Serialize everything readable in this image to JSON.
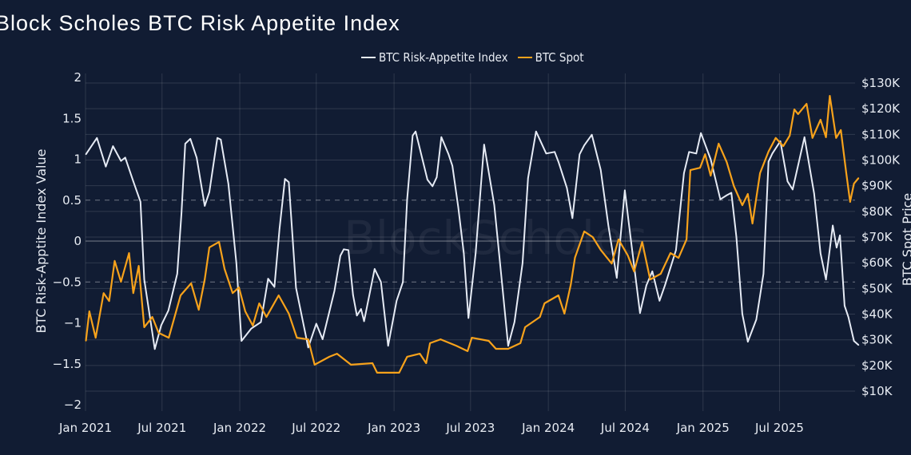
{
  "chart_data": {
    "type": "line",
    "title": "Block Scholes BTC Risk Appetite Index",
    "watermark": "BlockScholes",
    "legend_position": "top-center",
    "grid": true,
    "x_ticks": [
      "Jan 2021",
      "Jul 2021",
      "Jan 2022",
      "Jul 2022",
      "Jan 2023",
      "Jul 2023",
      "Jan 2024",
      "Jul 2024",
      "Jan 2025",
      "Jul 2025"
    ],
    "x_tick_dates": [
      "2021-01-01",
      "2021-07-01",
      "2022-01-01",
      "2022-07-01",
      "2023-01-01",
      "2023-07-01",
      "2024-01-01",
      "2024-07-01",
      "2025-01-01",
      "2025-07-01"
    ],
    "y_left": {
      "label": "BTC Risk-Apptite Index Value",
      "range": [
        -2,
        2
      ],
      "ticks": [
        "2",
        "1.5",
        "1",
        "0.5",
        "0",
        "−0.5",
        "−1",
        "−1.5",
        "−2"
      ],
      "tick_values": [
        2,
        1.5,
        1,
        0.5,
        0,
        -0.5,
        -1,
        -1.5,
        -2
      ],
      "dashed_reference_lines": [
        0.5,
        -0.5
      ]
    },
    "y_right": {
      "label": "BTC Spot Price",
      "range_k_usd": [
        10,
        130
      ],
      "ticks": [
        "$130K",
        "$120K",
        "$110K",
        "$100K",
        "$90K",
        "$80K",
        "$70K",
        "$60K",
        "$50K",
        "$40K",
        "$30K",
        "$20K",
        "$10K"
      ],
      "tick_values": [
        130,
        120,
        110,
        100,
        90,
        80,
        70,
        60,
        50,
        40,
        30,
        20,
        10
      ]
    },
    "series": [
      {
        "name": "BTC Risk-Appetite Index",
        "axis": "left",
        "color": "#e6ebf5",
        "points": [
          [
            "2021-01-02",
            1.06
          ],
          [
            "2021-01-28",
            1.26
          ],
          [
            "2021-02-18",
            0.91
          ],
          [
            "2021-03-07",
            1.16
          ],
          [
            "2021-03-26",
            0.98
          ],
          [
            "2021-04-05",
            1.02
          ],
          [
            "2021-04-24",
            0.73
          ],
          [
            "2021-05-11",
            0.48
          ],
          [
            "2021-05-20",
            -0.47
          ],
          [
            "2021-06-14",
            -1.32
          ],
          [
            "2021-06-29",
            -1.03
          ],
          [
            "2021-07-16",
            -0.85
          ],
          [
            "2021-08-06",
            -0.4
          ],
          [
            "2021-08-16",
            0.34
          ],
          [
            "2021-08-25",
            1.19
          ],
          [
            "2021-09-06",
            1.25
          ],
          [
            "2021-09-21",
            1.02
          ],
          [
            "2021-10-10",
            0.43
          ],
          [
            "2021-10-21",
            0.6
          ],
          [
            "2021-11-09",
            1.26
          ],
          [
            "2021-11-17",
            1.24
          ],
          [
            "2021-12-05",
            0.7
          ],
          [
            "2021-12-24",
            -0.27
          ],
          [
            "2022-01-05",
            -1.22
          ],
          [
            "2022-01-28",
            -1.07
          ],
          [
            "2022-02-20",
            -0.99
          ],
          [
            "2022-03-09",
            -0.46
          ],
          [
            "2022-03-24",
            -0.56
          ],
          [
            "2022-04-05",
            0.15
          ],
          [
            "2022-04-18",
            0.76
          ],
          [
            "2022-04-27",
            0.72
          ],
          [
            "2022-05-14",
            -0.57
          ],
          [
            "2022-06-12",
            -1.3
          ],
          [
            "2022-07-01",
            -1.01
          ],
          [
            "2022-07-16",
            -1.2
          ],
          [
            "2022-08-13",
            -0.61
          ],
          [
            "2022-08-27",
            -0.18
          ],
          [
            "2022-09-04",
            -0.1
          ],
          [
            "2022-09-15",
            -0.11
          ],
          [
            "2022-09-26",
            -0.66
          ],
          [
            "2022-10-05",
            -0.91
          ],
          [
            "2022-10-15",
            -0.83
          ],
          [
            "2022-10-22",
            -0.98
          ],
          [
            "2022-11-16",
            -0.34
          ],
          [
            "2022-12-01",
            -0.5
          ],
          [
            "2022-12-18",
            -1.28
          ],
          [
            "2023-01-07",
            -0.73
          ],
          [
            "2023-01-22",
            -0.5
          ],
          [
            "2023-02-01",
            0.51
          ],
          [
            "2023-02-14",
            1.29
          ],
          [
            "2023-02-21",
            1.34
          ],
          [
            "2023-03-21",
            0.75
          ],
          [
            "2023-04-02",
            0.67
          ],
          [
            "2023-04-12",
            0.78
          ],
          [
            "2023-04-23",
            1.27
          ],
          [
            "2023-05-10",
            1.06
          ],
          [
            "2023-05-19",
            0.92
          ],
          [
            "2023-06-02",
            0.41
          ],
          [
            "2023-06-15",
            -0.15
          ],
          [
            "2023-06-26",
            -0.94
          ],
          [
            "2023-07-13",
            -0.15
          ],
          [
            "2023-08-02",
            1.18
          ],
          [
            "2023-08-26",
            0.44
          ],
          [
            "2023-09-14",
            -0.54
          ],
          [
            "2023-09-28",
            -1.28
          ],
          [
            "2023-10-13",
            -0.99
          ],
          [
            "2023-11-01",
            -0.27
          ],
          [
            "2023-11-14",
            0.77
          ],
          [
            "2023-12-03",
            1.34
          ],
          [
            "2023-12-27",
            1.07
          ],
          [
            "2024-01-16",
            1.09
          ],
          [
            "2024-01-25",
            0.97
          ],
          [
            "2024-02-14",
            0.65
          ],
          [
            "2024-02-27",
            0.28
          ],
          [
            "2024-03-15",
            1.06
          ],
          [
            "2024-03-26",
            1.17
          ],
          [
            "2024-04-13",
            1.3
          ],
          [
            "2024-05-04",
            0.87
          ],
          [
            "2024-05-22",
            0.19
          ],
          [
            "2024-06-11",
            -0.45
          ],
          [
            "2024-06-30",
            0.62
          ],
          [
            "2024-07-09",
            0.24
          ],
          [
            "2024-08-05",
            -0.88
          ],
          [
            "2024-08-20",
            -0.54
          ],
          [
            "2024-09-03",
            -0.37
          ],
          [
            "2024-09-20",
            -0.73
          ],
          [
            "2024-10-03",
            -0.54
          ],
          [
            "2024-10-29",
            -0.11
          ],
          [
            "2024-11-17",
            0.83
          ],
          [
            "2024-11-29",
            1.09
          ],
          [
            "2024-12-16",
            1.07
          ],
          [
            "2024-12-27",
            1.32
          ],
          [
            "2025-01-19",
            1.0
          ],
          [
            "2025-02-11",
            0.51
          ],
          [
            "2025-02-26",
            0.56
          ],
          [
            "2025-03-09",
            0.59
          ],
          [
            "2025-03-21",
            0.05
          ],
          [
            "2025-04-04",
            -0.89
          ],
          [
            "2025-04-17",
            -1.23
          ],
          [
            "2025-05-07",
            -0.96
          ],
          [
            "2025-05-24",
            -0.4
          ],
          [
            "2025-06-05",
            0.97
          ],
          [
            "2025-06-14",
            1.07
          ],
          [
            "2025-07-03",
            1.22
          ],
          [
            "2025-07-20",
            0.73
          ],
          [
            "2025-08-01",
            0.63
          ],
          [
            "2025-08-29",
            1.27
          ],
          [
            "2025-09-21",
            0.58
          ],
          [
            "2025-10-06",
            -0.15
          ],
          [
            "2025-10-19",
            -0.47
          ],
          [
            "2025-11-04",
            0.19
          ],
          [
            "2025-11-13",
            -0.08
          ],
          [
            "2025-11-21",
            0.07
          ],
          [
            "2025-12-02",
            -0.79
          ],
          [
            "2025-12-11",
            -0.93
          ],
          [
            "2025-12-24",
            -1.22
          ],
          [
            "2026-01-04",
            -1.27
          ]
        ]
      },
      {
        "name": "BTC Spot",
        "axis": "right",
        "color": "#f7a21b",
        "unit": "K USD",
        "points": [
          [
            "2021-01-02",
            29.6
          ],
          [
            "2021-01-10",
            41.1
          ],
          [
            "2021-01-25",
            30.8
          ],
          [
            "2021-02-13",
            48.2
          ],
          [
            "2021-02-26",
            45.1
          ],
          [
            "2021-03-11",
            60.7
          ],
          [
            "2021-03-26",
            52.6
          ],
          [
            "2021-04-14",
            63.8
          ],
          [
            "2021-04-24",
            48.2
          ],
          [
            "2021-05-07",
            58.8
          ],
          [
            "2021-05-20",
            34.9
          ],
          [
            "2021-06-08",
            38.9
          ],
          [
            "2021-06-23",
            32.7
          ],
          [
            "2021-07-17",
            30.8
          ],
          [
            "2021-08-14",
            47.3
          ],
          [
            "2021-09-08",
            52.0
          ],
          [
            "2021-09-26",
            41.7
          ],
          [
            "2021-10-10",
            53.5
          ],
          [
            "2021-10-21",
            66.0
          ],
          [
            "2021-11-13",
            68.1
          ],
          [
            "2021-11-26",
            57.6
          ],
          [
            "2021-12-15",
            48.2
          ],
          [
            "2021-12-30",
            50.4
          ],
          [
            "2022-01-14",
            41.1
          ],
          [
            "2022-02-01",
            35.5
          ],
          [
            "2022-02-16",
            44.2
          ],
          [
            "2022-03-05",
            38.9
          ],
          [
            "2022-04-03",
            47.3
          ],
          [
            "2022-04-27",
            40.2
          ],
          [
            "2022-05-16",
            30.8
          ],
          [
            "2022-06-12",
            30.2
          ],
          [
            "2022-06-27",
            20.3
          ],
          [
            "2022-08-01",
            23.4
          ],
          [
            "2022-08-19",
            24.6
          ],
          [
            "2022-09-21",
            20.3
          ],
          [
            "2022-11-11",
            20.9
          ],
          [
            "2022-11-22",
            17.2
          ],
          [
            "2023-01-13",
            17.2
          ],
          [
            "2023-02-01",
            23.4
          ],
          [
            "2023-03-03",
            24.6
          ],
          [
            "2023-03-18",
            20.9
          ],
          [
            "2023-03-27",
            28.7
          ],
          [
            "2023-04-21",
            30.2
          ],
          [
            "2023-05-28",
            27.7
          ],
          [
            "2023-06-24",
            25.6
          ],
          [
            "2023-07-04",
            30.8
          ],
          [
            "2023-08-13",
            29.6
          ],
          [
            "2023-08-30",
            26.5
          ],
          [
            "2023-09-28",
            26.5
          ],
          [
            "2023-10-27",
            28.7
          ],
          [
            "2023-11-07",
            34.9
          ],
          [
            "2023-12-12",
            38.9
          ],
          [
            "2023-12-23",
            44.2
          ],
          [
            "2024-01-25",
            47.3
          ],
          [
            "2024-02-08",
            40.2
          ],
          [
            "2024-02-23",
            51.4
          ],
          [
            "2024-03-04",
            62.0
          ],
          [
            "2024-03-26",
            72.2
          ],
          [
            "2024-04-15",
            70.0
          ],
          [
            "2024-05-04",
            65.0
          ],
          [
            "2024-05-30",
            59.7
          ],
          [
            "2024-06-15",
            69.1
          ],
          [
            "2024-07-07",
            62.9
          ],
          [
            "2024-07-22",
            56.6
          ],
          [
            "2024-08-10",
            68.1
          ],
          [
            "2024-08-29",
            53.5
          ],
          [
            "2024-09-23",
            55.7
          ],
          [
            "2024-10-16",
            63.8
          ],
          [
            "2024-11-04",
            61.9
          ],
          [
            "2024-11-23",
            69.1
          ],
          [
            "2024-12-02",
            96.1
          ],
          [
            "2024-12-25",
            97.0
          ],
          [
            "2025-01-06",
            102.3
          ],
          [
            "2025-01-19",
            93.9
          ],
          [
            "2025-02-07",
            106.4
          ],
          [
            "2025-02-26",
            99.2
          ],
          [
            "2025-03-15",
            89.9
          ],
          [
            "2025-04-04",
            82.4
          ],
          [
            "2025-04-17",
            86.8
          ],
          [
            "2025-04-28",
            75.3
          ],
          [
            "2025-05-16",
            94.9
          ],
          [
            "2025-06-05",
            103.3
          ],
          [
            "2025-06-22",
            108.6
          ],
          [
            "2025-07-10",
            105.4
          ],
          [
            "2025-07-25",
            109.5
          ],
          [
            "2025-08-05",
            119.7
          ],
          [
            "2025-08-14",
            117.9
          ],
          [
            "2025-09-03",
            121.9
          ],
          [
            "2025-09-17",
            108.6
          ],
          [
            "2025-10-06",
            115.7
          ],
          [
            "2025-10-19",
            108.9
          ],
          [
            "2025-10-28",
            125.0
          ],
          [
            "2025-11-12",
            108.6
          ],
          [
            "2025-11-23",
            111.7
          ],
          [
            "2025-12-06",
            94.9
          ],
          [
            "2025-12-15",
            83.7
          ],
          [
            "2025-12-24",
            90.8
          ],
          [
            "2026-01-04",
            93.0
          ]
        ]
      }
    ]
  }
}
